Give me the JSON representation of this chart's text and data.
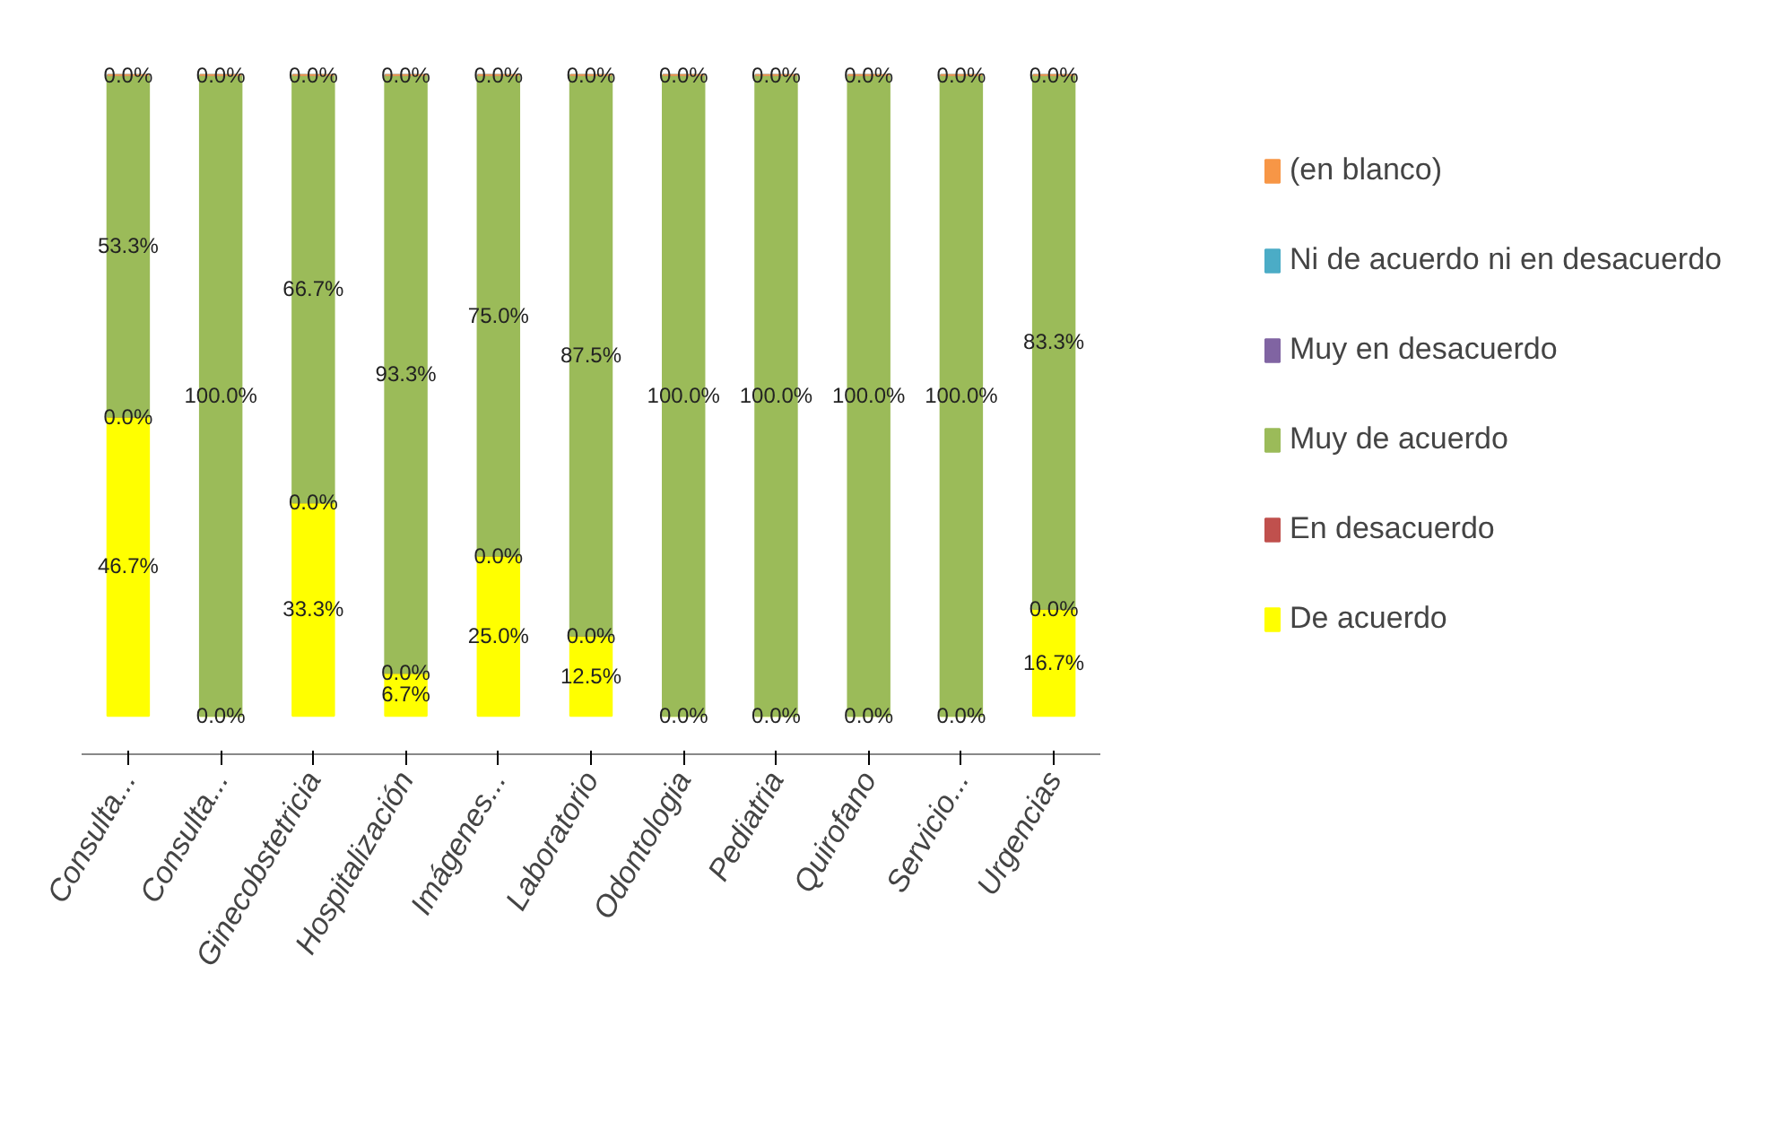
{
  "chart_data": {
    "type": "bar",
    "stacked": true,
    "legend": "right",
    "grid": false,
    "categories": [
      "Consulta...",
      "Consulta...",
      "Ginecobstetricia",
      "Hospitalización",
      "Imágenes...",
      "Laboratorio",
      "Odontologia",
      "Pediatria",
      "Quirofano",
      "Servicio...",
      "Urgencias"
    ],
    "series": [
      {
        "name": "De acuerdo",
        "color": "#ffff00",
        "values": [
          46.7,
          0.0,
          33.3,
          6.7,
          25.0,
          12.5,
          0.0,
          0.0,
          0.0,
          0.0,
          16.7
        ],
        "value_labels": [
          "46.7%",
          "0.0%",
          "33.3%",
          "6.7%",
          "25.0%",
          "12.5%",
          "0.0%",
          "0.0%",
          "0.0%",
          "0.0%",
          "16.7%"
        ]
      },
      {
        "name": "En desacuerdo",
        "color": "#c0504d",
        "values": [
          0.0,
          null,
          0.0,
          0.0,
          0.0,
          0.0,
          null,
          null,
          null,
          null,
          0.0
        ],
        "value_labels": [
          "0.0%",
          null,
          "0.0%",
          "0.0%",
          "0.0%",
          "0.0%",
          null,
          null,
          null,
          null,
          "0.0%"
        ]
      },
      {
        "name": "Muy de acuerdo",
        "color": "#9bbb59",
        "values": [
          53.3,
          100.0,
          66.7,
          93.3,
          75.0,
          87.5,
          100.0,
          100.0,
          100.0,
          100.0,
          83.3
        ],
        "value_labels": [
          "53.3%",
          "100.0%",
          "66.7%",
          "93.3%",
          "75.0%",
          "87.5%",
          "100.0%",
          "100.0%",
          "100.0%",
          "100.0%",
          "83.3%"
        ]
      },
      {
        "name": "Muy en desacuerdo",
        "color": "#8064a2",
        "values": [
          0.0,
          0.0,
          0.0,
          0.0,
          0.0,
          0.0,
          0.0,
          0.0,
          0.0,
          0.0,
          0.0
        ]
      },
      {
        "name": "Ni de acuerdo ni en desacuerdo",
        "color": "#4bacc6",
        "values": [
          0.0,
          0.0,
          0.0,
          0.0,
          0.0,
          0.0,
          0.0,
          0.0,
          0.0,
          0.0,
          0.0
        ]
      },
      {
        "name": "(en blanco)",
        "color": "#f79646",
        "values": [
          0.0,
          0.0,
          0.0,
          0.0,
          0.0,
          0.0,
          0.0,
          0.0,
          0.0,
          0.0,
          0.0
        ],
        "value_labels": [
          "0.0%",
          "0.0%",
          "0.0%",
          "0.0%",
          "0.0%",
          "0.0%",
          "0.0%",
          "0.0%",
          "0.0%",
          "0.0%",
          "0.0%"
        ]
      }
    ]
  }
}
